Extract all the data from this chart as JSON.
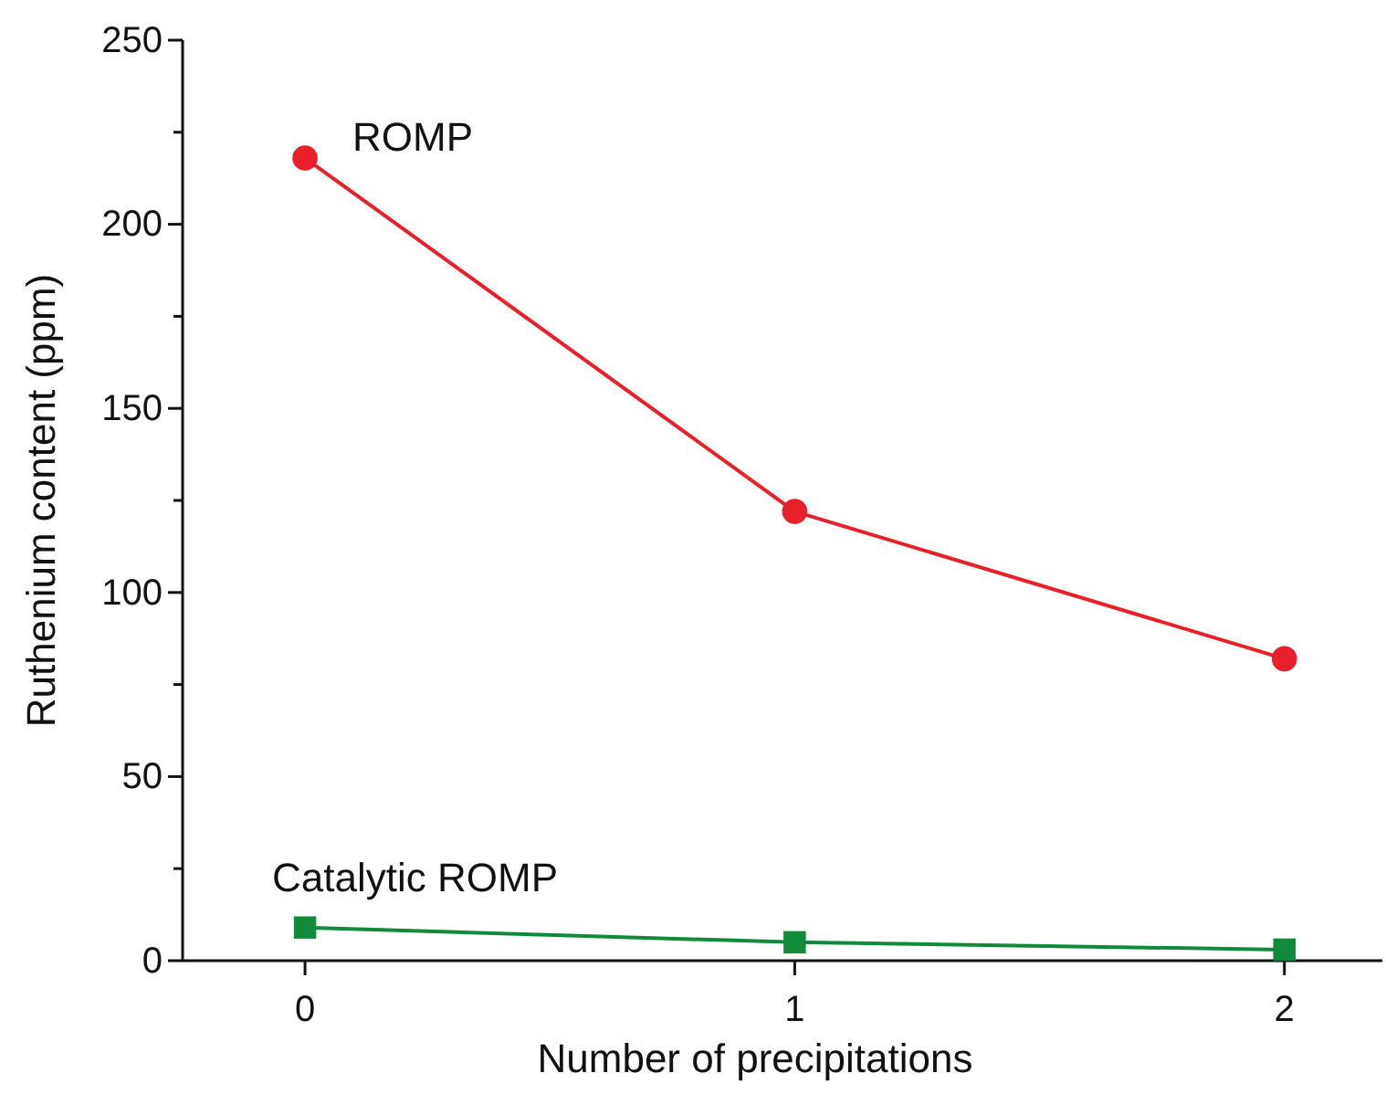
{
  "chart_data": {
    "type": "line",
    "xlabel": "Number of precipitations",
    "ylabel": "Ruthenium content (ppm)",
    "x": [
      0,
      1,
      2
    ],
    "xlim": [
      -0.25,
      2.2
    ],
    "xticks": [
      0,
      1,
      2
    ],
    "ylim": [
      0,
      250
    ],
    "yticks": [
      0,
      {
        "value": 25,
        "label": null
      },
      50,
      {
        "value": 75,
        "label": null
      },
      100,
      {
        "value": 125,
        "label": null
      },
      150,
      {
        "value": 175,
        "label": null
      },
      200,
      {
        "value": 225,
        "label": null
      },
      250
    ],
    "grid": false,
    "legend": false,
    "line_style": "solid",
    "series": [
      {
        "name": "ROMP",
        "color": "#e8202a",
        "marker": "circle",
        "values": [
          218,
          122,
          82
        ]
      },
      {
        "name": "Catalytic ROMP",
        "color": "#128a3c",
        "marker": "square",
        "values": [
          9,
          5,
          3
        ]
      }
    ]
  }
}
